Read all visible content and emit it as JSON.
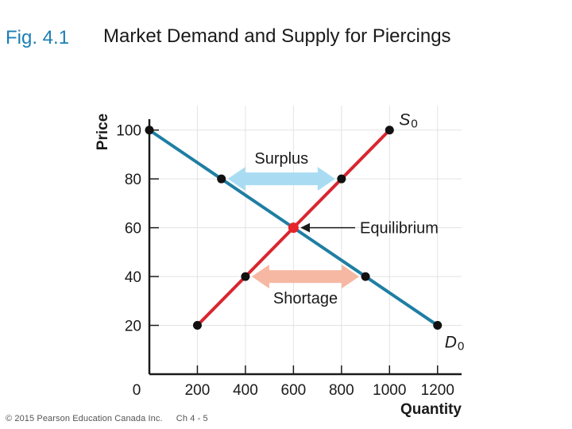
{
  "header": {
    "fig_label": "Fig. 4.1",
    "title": "Market Demand and Supply for Piercings"
  },
  "footer": {
    "copyright": "© 2015 Pearson Education Canada Inc.",
    "slide_ref": "Ch 4 - 5"
  },
  "colors": {
    "demand": "#1f7ea3",
    "supply": "#d8262f",
    "surplus_arrow": "#a9dcf2",
    "shortage_arrow": "#f6b8a2",
    "equilibrium_point": "#e8232a",
    "fig_label": "#1b7fb5"
  },
  "chart_data": {
    "type": "line",
    "title": "Market Demand and Supply for Piercings",
    "xlabel": "Quantity",
    "ylabel": "Price",
    "xlim": [
      0,
      1300
    ],
    "ylim": [
      0,
      110
    ],
    "x_ticks": [
      0,
      200,
      400,
      600,
      800,
      1000,
      1200
    ],
    "y_ticks": [
      20,
      40,
      60,
      80,
      100
    ],
    "x_tick_labels": [
      "200",
      "400",
      "600",
      "800",
      "1000",
      "1200"
    ],
    "y_tick_labels": [
      "20",
      "40",
      "60",
      "80",
      "100"
    ],
    "origin_label": "0",
    "grid": true,
    "series": [
      {
        "name": "D0",
        "label_main": "D",
        "label_sub": "0",
        "points": [
          {
            "x": 0,
            "y": 100
          },
          {
            "x": 300,
            "y": 80
          },
          {
            "x": 600,
            "y": 60
          },
          {
            "x": 900,
            "y": 40
          },
          {
            "x": 1200,
            "y": 20
          }
        ]
      },
      {
        "name": "S0",
        "label_main": "S",
        "label_sub": "0",
        "points": [
          {
            "x": 200,
            "y": 20
          },
          {
            "x": 400,
            "y": 40
          },
          {
            "x": 600,
            "y": 60
          },
          {
            "x": 800,
            "y": 80
          },
          {
            "x": 1000,
            "y": 100
          }
        ]
      }
    ],
    "annotations": {
      "surplus": {
        "text": "Surplus",
        "y": 80,
        "x_from": 300,
        "x_to": 800
      },
      "shortage": {
        "text": "Shortage",
        "y": 40,
        "x_from": 400,
        "x_to": 900
      },
      "equilibrium": {
        "text": "Equilibrium",
        "x": 600,
        "y": 60
      }
    }
  }
}
